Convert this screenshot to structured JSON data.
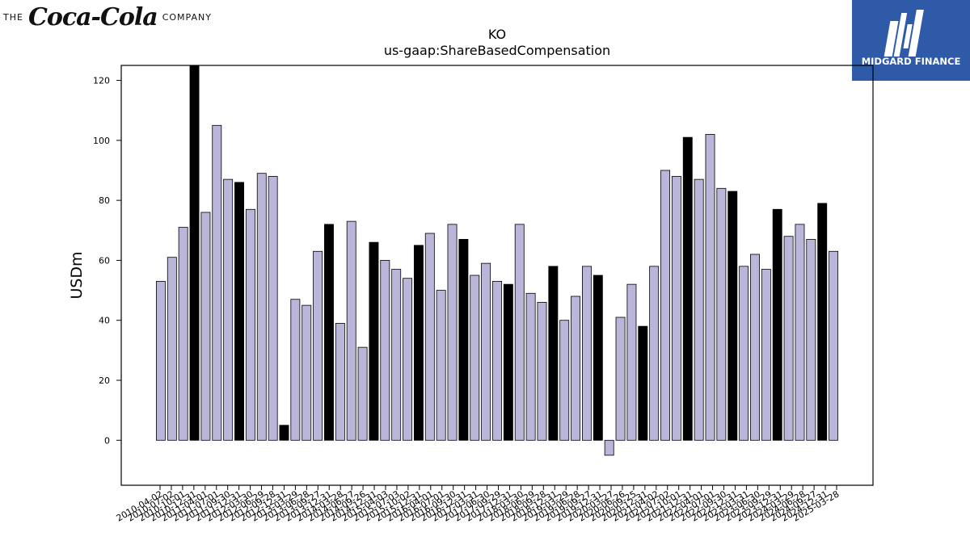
{
  "header": {
    "company_prefix": "THE",
    "company_script": "Coca-Cola",
    "company_suffix": "COMPANY",
    "brand_name": "MIDGARD FINANCE",
    "brand_color": "#2e5aa8"
  },
  "colors": {
    "bar_default": "#b9b6d9",
    "bar_highlight": "#000000",
    "edge": "#000000"
  },
  "chart_data": {
    "type": "bar",
    "title": "KO",
    "subtitle": "us-gaap:ShareBasedCompensation",
    "ylabel": "USDm",
    "xlabel": "",
    "ylim": [
      -15,
      125
    ],
    "yticks": [
      0,
      20,
      40,
      60,
      80,
      100,
      120
    ],
    "grid": false,
    "legend": "none",
    "categories": [
      "2010-04-02",
      "2010-07-02",
      "2010-10-01",
      "2010-12-31",
      "2011-04-01",
      "2011-07-01",
      "2011-09-30",
      "2011-12-31",
      "2012-03-30",
      "2012-06-29",
      "2012-09-28",
      "2012-12-31",
      "2013-03-29",
      "2013-06-28",
      "2013-09-27",
      "2013-12-31",
      "2014-03-28",
      "2014-06-27",
      "2014-09-26",
      "2014-12-31",
      "2015-04-03",
      "2015-07-03",
      "2015-10-02",
      "2015-12-31",
      "2016-04-01",
      "2016-07-01",
      "2016-09-30",
      "2016-12-31",
      "2017-03-31",
      "2017-06-30",
      "2017-09-29",
      "2017-12-31",
      "2018-03-30",
      "2018-06-29",
      "2018-09-28",
      "2018-12-31",
      "2019-03-29",
      "2019-06-28",
      "2019-09-27",
      "2019-12-31",
      "2020-03-27",
      "2020-06-26",
      "2020-09-25",
      "2020-12-31",
      "2021-04-02",
      "2021-07-02",
      "2021-10-01",
      "2021-12-31",
      "2022-04-01",
      "2022-07-01",
      "2022-09-30",
      "2022-12-31",
      "2023-03-31",
      "2023-06-30",
      "2023-09-29",
      "2023-12-31",
      "2024-03-29",
      "2024-06-28",
      "2024-09-27",
      "2024-12-31",
      "2025-03-28"
    ],
    "visible_xtick_labels": [
      "2010-04-02",
      "2010-07-02",
      "2010-10-01",
      "2010-12-31",
      "2011-04-01",
      "2011-07-01",
      "2011-09-30",
      "2011-12-31",
      "2012-03-30",
      "2012-06-29",
      "2012-09-28",
      "2012-12-31",
      "2013-03-29",
      "2013-06-28",
      "2013-09-27",
      "2013-12-31",
      "2014-03-28",
      "2014-06-27",
      "2014-09-26",
      "2014-12-31",
      "2015-04-03",
      "2015-07-03",
      "2015-10-02",
      "2015-12-31",
      "2016-04-01",
      "2016-07-01",
      "2016-09-30",
      "2016-12-31",
      "2017-03-31",
      "2017-06-30",
      "2017-09-29",
      "2017-12-31",
      "2018-03-30",
      "2018-06-29",
      "2018-09-28",
      "2018-12-31",
      "2019-03-29",
      "2019-06-28",
      "2019-09-27",
      "2019-12-31",
      "2020-03-27",
      "2020-06-26",
      "2020-09-25",
      "2020-12-31",
      "2021-04-02",
      "2021-07-02",
      "2021-10-01",
      "2021-12-31",
      "2022-04-01",
      "2022-07-01",
      "2022-09-30",
      "2022-12-31",
      "2023-03-31",
      "2023-06-30",
      "2023-09-29",
      "2023-12-31",
      "2024-03-29",
      "2024-06-28",
      "2024-09-27",
      "2024-12-31",
      "2025-03-28"
    ],
    "values": [
      53,
      61,
      71,
      125,
      76,
      105,
      87,
      86,
      77,
      89,
      88,
      5,
      47,
      45,
      63,
      72,
      39,
      73,
      31,
      66,
      60,
      57,
      54,
      65,
      69,
      50,
      72,
      67,
      55,
      59,
      53,
      52,
      72,
      49,
      46,
      58,
      40,
      48,
      58,
      55,
      -5,
      41,
      52,
      38,
      58,
      90,
      88,
      101,
      87,
      102,
      84,
      83,
      58,
      62,
      57,
      77,
      68,
      72,
      67,
      79,
      63
    ]
  }
}
